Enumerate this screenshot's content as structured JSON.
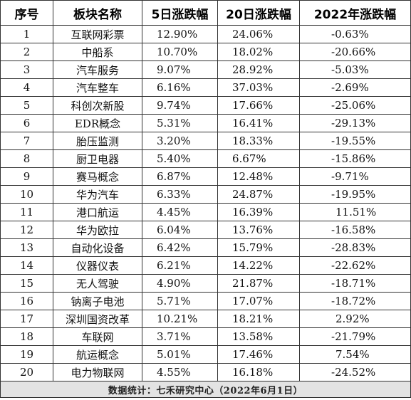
{
  "table": {
    "headers": [
      "序号",
      "板块名称",
      "5日涨跌幅",
      "20日涨跌幅",
      "2022年涨跌幅"
    ],
    "rows": [
      [
        "1",
        "互联网彩票",
        "12.90%",
        "24.06%",
        "-0.63%"
      ],
      [
        "2",
        "中船系",
        "10.70%",
        "18.02%",
        "-20.66%"
      ],
      [
        "3",
        "汽车服务",
        "9.07%",
        "28.92%",
        "-5.03%"
      ],
      [
        "4",
        "汽车整车",
        "6.16%",
        "37.03%",
        "-2.69%"
      ],
      [
        "5",
        "科创次新股",
        "9.74%",
        "17.66%",
        "-25.06%"
      ],
      [
        "6",
        "EDR概念",
        "5.31%",
        "16.41%",
        "-29.13%"
      ],
      [
        "7",
        "胎压监测",
        "3.20%",
        "18.33%",
        "-19.55%"
      ],
      [
        "8",
        "厨卫电器",
        "5.40%",
        "6.67%",
        "-15.86%"
      ],
      [
        "9",
        "赛马概念",
        "6.87%",
        "12.48%",
        "-9.71%"
      ],
      [
        "10",
        "华为汽车",
        "6.33%",
        "24.87%",
        "-19.95%"
      ],
      [
        "11",
        "港口航运",
        "4.45%",
        "16.39%",
        "11.51%"
      ],
      [
        "12",
        "华为欧拉",
        "6.04%",
        "13.76%",
        "-16.58%"
      ],
      [
        "13",
        "自动化设备",
        "6.42%",
        "15.79%",
        "-28.83%"
      ],
      [
        "14",
        "仪器仪表",
        "6.21%",
        "14.22%",
        "-22.62%"
      ],
      [
        "15",
        "无人驾驶",
        "4.90%",
        "21.87%",
        "-18.71%"
      ],
      [
        "16",
        "钠离子电池",
        "5.71%",
        "17.07%",
        "-18.72%"
      ],
      [
        "17",
        "深圳国资改革",
        "10.21%",
        "18.21%",
        "2.92%"
      ],
      [
        "18",
        "车联网",
        "3.71%",
        "13.58%",
        "-21.79%"
      ],
      [
        "19",
        "航运概念",
        "5.01%",
        "17.46%",
        "7.54%"
      ],
      [
        "20",
        "电力物联网",
        "4.55%",
        "16.18%",
        "-24.52%"
      ]
    ],
    "footer": "数据统计：七禾研究中心（2022年6月1日）"
  }
}
